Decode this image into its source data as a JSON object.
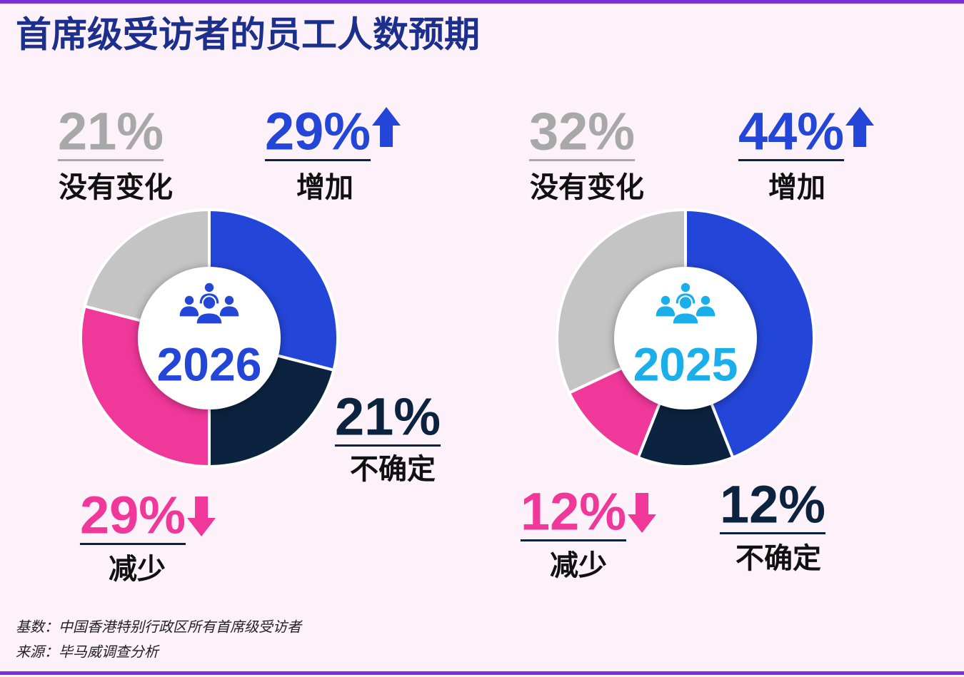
{
  "title": "首席级受访者的员工人数预期",
  "chart_data": [
    {
      "type": "pie",
      "center_label": "2026",
      "center_color": "#2446d8",
      "categories": [
        "增加",
        "不确定",
        "减少",
        "没有变化"
      ],
      "values": [
        29,
        21,
        29,
        21
      ],
      "value_labels": [
        "29%",
        "21%",
        "29%",
        "21%"
      ],
      "colors": [
        "#2446d8",
        "#0c2340",
        "#f0389b",
        "#c4c4c4"
      ]
    },
    {
      "type": "pie",
      "center_label": "2025",
      "center_color": "#1aaeea",
      "categories": [
        "增加",
        "不确定",
        "减少",
        "没有变化"
      ],
      "values": [
        44,
        12,
        12,
        32
      ],
      "value_labels": [
        "44%",
        "12%",
        "12%",
        "32%"
      ],
      "colors": [
        "#2446d8",
        "#0c2340",
        "#f0389b",
        "#c4c4c4"
      ]
    }
  ],
  "notes": [
    "基数：中国香港特别行政区所有首席级受访者",
    "来源：毕马威调查分析"
  ]
}
